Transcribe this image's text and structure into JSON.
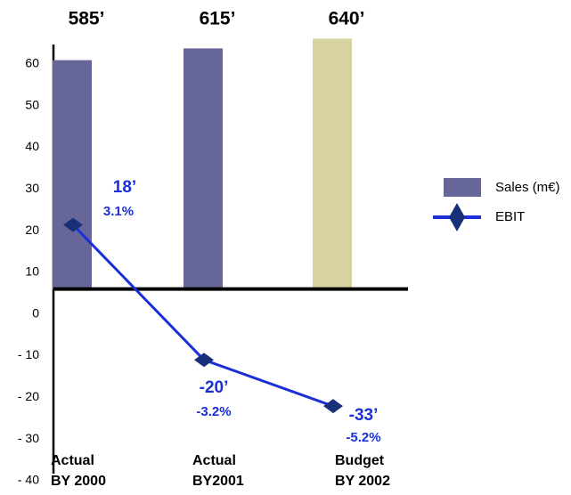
{
  "chart_data": {
    "type": "bar_line",
    "categories": [
      [
        "Actual",
        "BY 2000"
      ],
      [
        "Actual",
        "BY2001"
      ],
      [
        "Budget",
        "BY 2002"
      ]
    ],
    "ylim": [
      -40,
      67
    ],
    "yticks": [
      60,
      50,
      40,
      30,
      20,
      10,
      0,
      {
        "value": -10,
        "label": "- 10"
      },
      {
        "value": -20,
        "label": "- 20"
      },
      {
        "value": -30,
        "label": "- 30"
      },
      {
        "value": -40,
        "label": "- 40"
      }
    ],
    "y2lim": [
      -490,
      650
    ],
    "y3lim": [
      -54,
      71.5
    ],
    "series": [
      {
        "name": "Sales (m€)",
        "type": "bar",
        "axis": "y2",
        "color": "#666699",
        "colors": [
          "#666699",
          "#666699",
          "#d6d3a0"
        ],
        "values": [
          585,
          615,
          640
        ],
        "value_labels": [
          "585’",
          "615’",
          "640’"
        ]
      },
      {
        "name": "EBIT",
        "type": "line",
        "axis": "y3",
        "color": "#1a2fd6",
        "marker_color": "#1a2f7a",
        "values": [
          18,
          -20,
          -33
        ],
        "value_labels": [
          "18’",
          "-20’",
          "-33’"
        ],
        "percent_labels": [
          "3.1%",
          "-3.2%",
          "-5.2%"
        ]
      }
    ]
  }
}
